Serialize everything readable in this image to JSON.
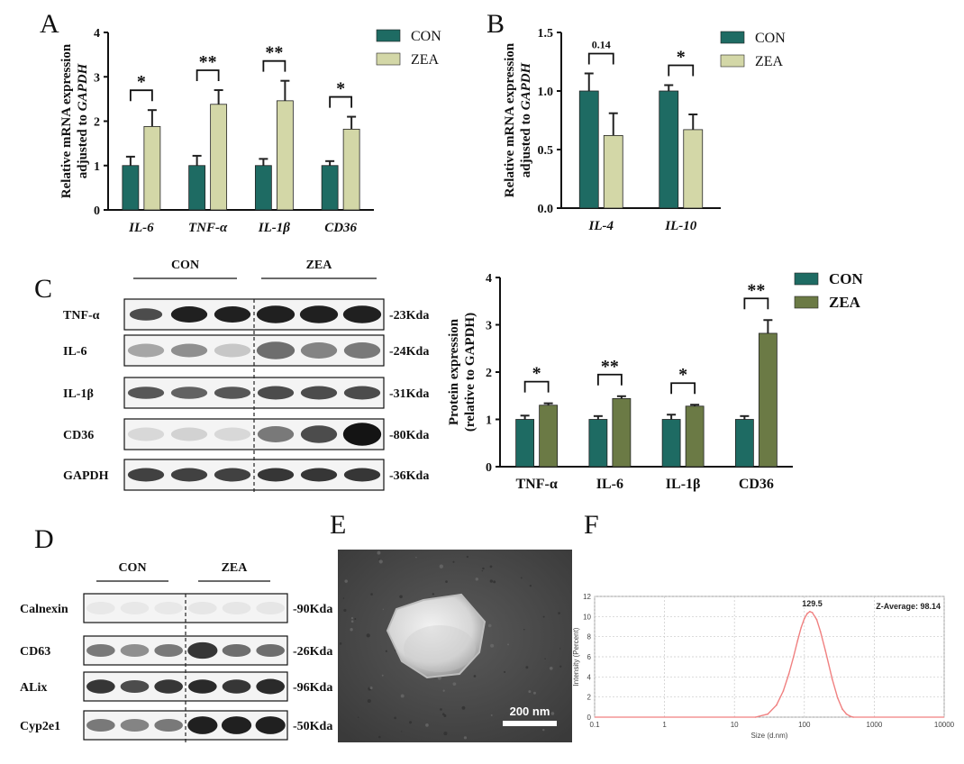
{
  "panel_letters": {
    "A": "A",
    "B": "B",
    "C": "C",
    "D": "D",
    "E": "E",
    "F": "F"
  },
  "colors": {
    "con_teal": "#1e6b63",
    "zea_khaki": "#d3d7a7",
    "zea_olive": "#6b7a45",
    "dls_curve": "#f08080"
  },
  "chart_data": [
    {
      "panel": "A",
      "type": "bar",
      "ylabel_line1": "Relative mRNA expression",
      "ylabel_line2_prefix": "adjusted to ",
      "ylabel_line2_gene": "GAPDH",
      "ylim": [
        0,
        4
      ],
      "yticks": [
        "0",
        "1",
        "2",
        "3",
        "4"
      ],
      "categories": [
        "IL-6",
        "TNF-α",
        "IL-1β",
        "CD36"
      ],
      "series": [
        {
          "name": "CON",
          "values": [
            1.0,
            1.0,
            1.0,
            1.0
          ],
          "errors": [
            0.2,
            0.22,
            0.15,
            0.1
          ]
        },
        {
          "name": "ZEA",
          "values": [
            1.88,
            2.38,
            2.46,
            1.82
          ],
          "errors": [
            0.37,
            0.32,
            0.45,
            0.28
          ]
        }
      ],
      "significance": [
        "*",
        "**",
        "**",
        "*"
      ]
    },
    {
      "panel": "B",
      "type": "bar",
      "ylabel_line1": "Relative mRNA expression",
      "ylabel_line2_prefix": "adjusted to ",
      "ylabel_line2_gene": "GAPDH",
      "ylim": [
        0,
        1.5
      ],
      "yticks": [
        "0.0",
        "0.5",
        "1.0",
        "1.5"
      ],
      "categories": [
        "IL-4",
        "IL-10"
      ],
      "series": [
        {
          "name": "CON",
          "values": [
            1.0,
            1.0
          ],
          "errors": [
            0.15,
            0.05
          ]
        },
        {
          "name": "ZEA",
          "values": [
            0.62,
            0.67
          ],
          "errors": [
            0.19,
            0.13
          ]
        }
      ],
      "significance": [
        "0.14",
        "*"
      ]
    },
    {
      "panel": "C",
      "type": "bar",
      "ylabel_line1": "Protein expression",
      "ylabel_line2": "(relative to GAPDH)",
      "ylim": [
        0,
        4
      ],
      "yticks": [
        "0",
        "1",
        "2",
        "3",
        "4"
      ],
      "categories": [
        "TNF-α",
        "IL-6",
        "IL-1β",
        "CD36"
      ],
      "series": [
        {
          "name": "CON",
          "values": [
            1.0,
            1.0,
            1.0,
            1.0
          ],
          "errors": [
            0.08,
            0.07,
            0.1,
            0.07
          ]
        },
        {
          "name": "ZEA",
          "values": [
            1.3,
            1.44,
            1.28,
            2.82
          ],
          "errors": [
            0.04,
            0.05,
            0.03,
            0.28
          ]
        }
      ],
      "significance": [
        "*",
        "**",
        "*",
        "**"
      ]
    },
    {
      "panel": "F",
      "type": "line",
      "xlabel": "Size (d.nm)",
      "ylabel": "Intensity (Percent)",
      "x_scale": "log",
      "xlim": [
        0.1,
        10000
      ],
      "ylim": [
        0,
        12
      ],
      "xticks": [
        "0.1",
        "1",
        "10",
        "100",
        "1000",
        "10000"
      ],
      "yticks": [
        "0",
        "2",
        "4",
        "6",
        "8",
        "10",
        "12"
      ],
      "peak_label": "129.5",
      "z_average_label": "Z-Average: 98.14",
      "x": [
        20,
        30,
        40,
        50,
        60,
        70,
        80,
        90,
        100,
        110,
        120,
        130,
        150,
        170,
        200,
        250,
        300,
        350,
        400,
        450,
        500
      ],
      "y": [
        0,
        0.3,
        1.2,
        2.6,
        4.3,
        6.0,
        7.6,
        8.9,
        9.8,
        10.3,
        10.5,
        10.4,
        9.7,
        8.5,
        6.6,
        3.8,
        1.9,
        0.8,
        0.3,
        0.1,
        0
      ]
    }
  ],
  "blot_c": {
    "group_labels": [
      "CON",
      "ZEA"
    ],
    "rows": [
      {
        "label": "TNF-α",
        "kda": "-23Kda"
      },
      {
        "label": "IL-6",
        "kda": "-24Kda"
      },
      {
        "label": "IL-1β",
        "kda": "-31Kda"
      },
      {
        "label": "CD36",
        "kda": "-80Kda"
      },
      {
        "label": "GAPDH",
        "kda": "-36Kda"
      }
    ]
  },
  "blot_d": {
    "group_labels": [
      "CON",
      "ZEA"
    ],
    "rows": [
      {
        "label": "Calnexin",
        "kda": "-90Kda"
      },
      {
        "label": "CD63",
        "kda": "-26Kda"
      },
      {
        "label": "ALix",
        "kda": "-96Kda"
      },
      {
        "label": "Cyp2e1",
        "kda": "-50Kda"
      }
    ]
  },
  "sem": {
    "scale_label": "200 nm"
  }
}
